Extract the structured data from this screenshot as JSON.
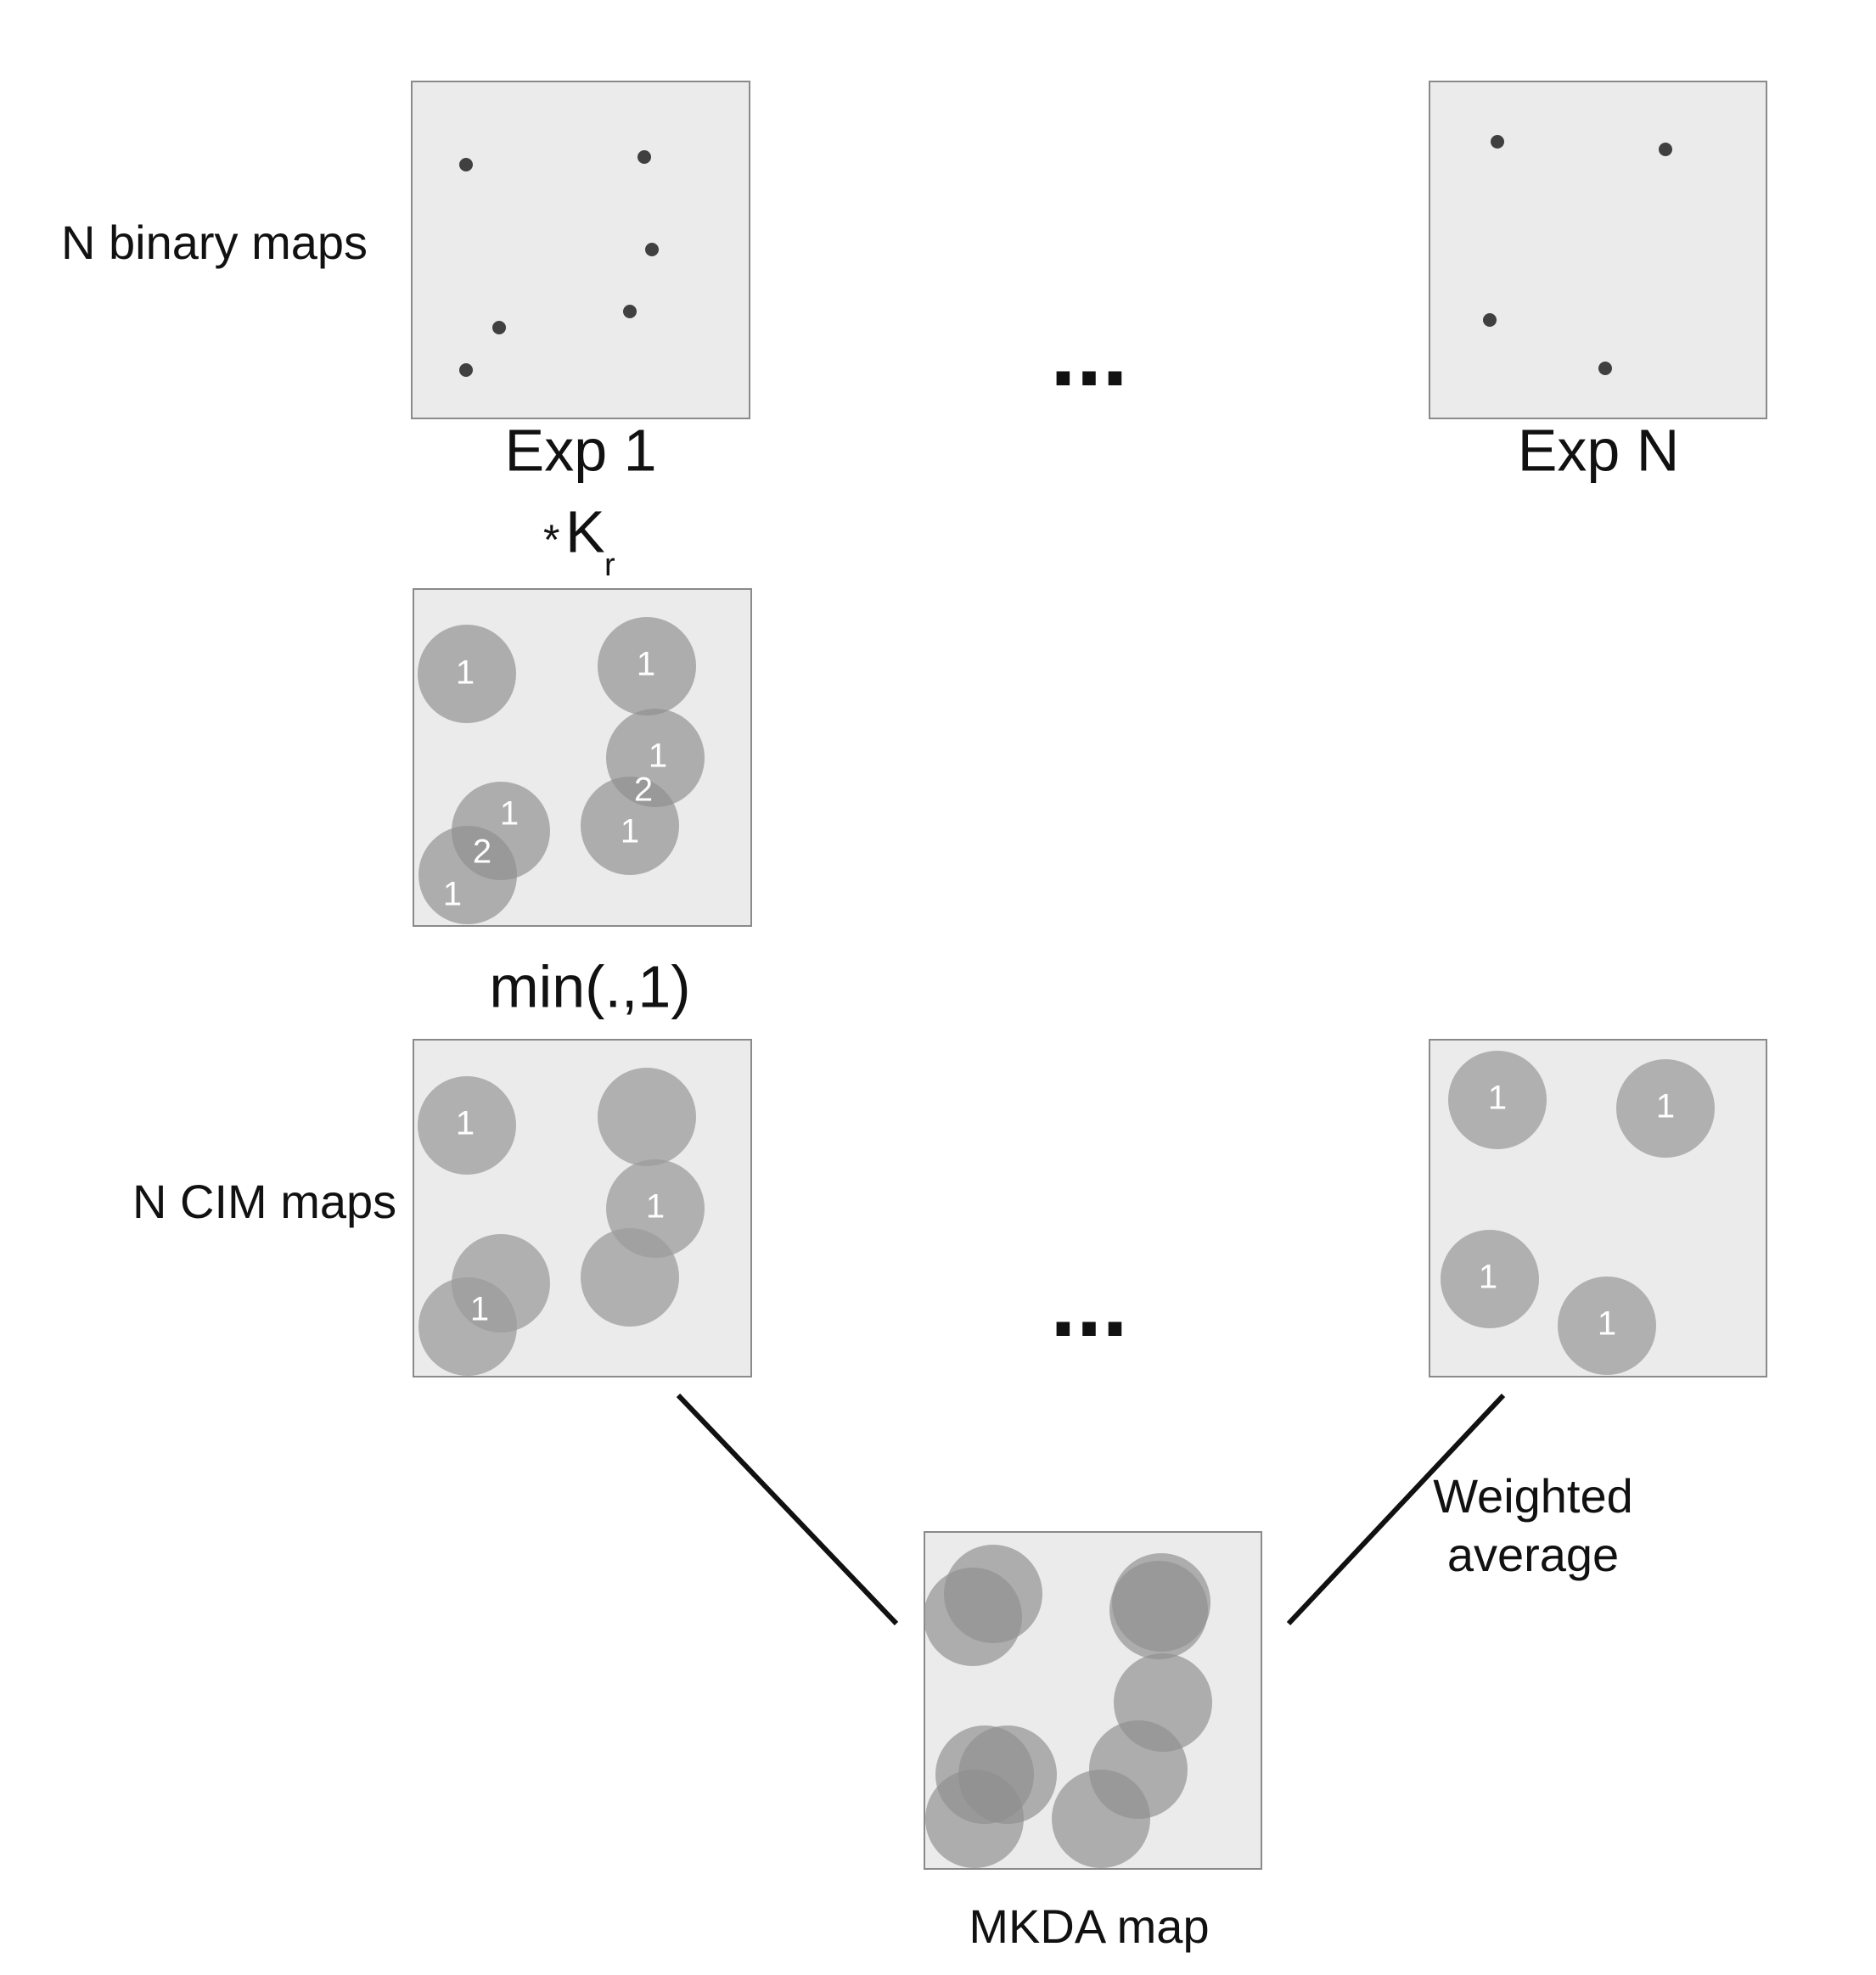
{
  "labels": {
    "binary_maps": "N binary maps",
    "exp1": "Exp 1",
    "expN": "Exp N",
    "kernel_star": "*",
    "kernel_K": "K",
    "kernel_sub": "r",
    "min_op": "min(.,1)",
    "cim_maps": "N CIM maps",
    "weighted_line1": "Weighted",
    "weighted_line2": "average",
    "mkda_map": "MKDA map",
    "ellipsis": "..."
  },
  "numbers": {
    "one": "1",
    "two": "2"
  },
  "colors": {
    "map_background": "#ebebeb",
    "point": "#404040",
    "kernel_disk": "#8f8f8f",
    "overlap_dark": "#5a5a5a"
  }
}
